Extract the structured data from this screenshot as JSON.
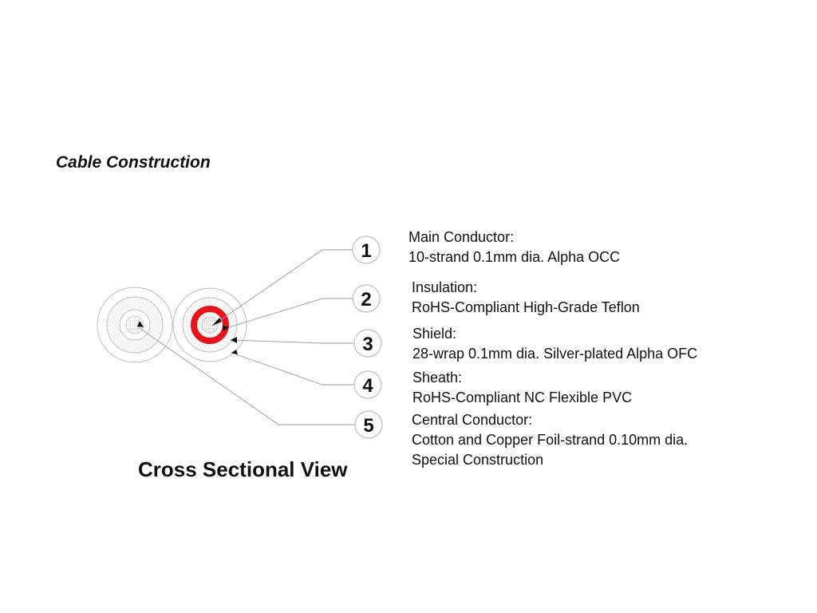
{
  "heading": "Cable Construction",
  "caption": "Cross Sectional View",
  "colors": {
    "insulation": "#e8141c",
    "line": "#9a9a9a",
    "text": "#111111"
  },
  "callouts": [
    {
      "number": "1",
      "title": "Main Conductor:",
      "lines": [
        "10-strand 0.1mm dia.  Alpha OCC"
      ]
    },
    {
      "number": "2",
      "title": "Insulation:",
      "lines": [
        "RoHS-Compliant High-Grade Teflon"
      ]
    },
    {
      "number": "3",
      "title": "Shield:",
      "lines": [
        "28-wrap 0.1mm dia. Silver-plated Alpha OFC"
      ]
    },
    {
      "number": "4",
      "title": "Sheath:",
      "lines": [
        "RoHS-Compliant NC Flexible PVC"
      ]
    },
    {
      "number": "5",
      "title": "Central Conductor:",
      "lines": [
        "Cotton and Copper Foil-strand 0.10mm dia.",
        "Special Construction"
      ]
    }
  ]
}
